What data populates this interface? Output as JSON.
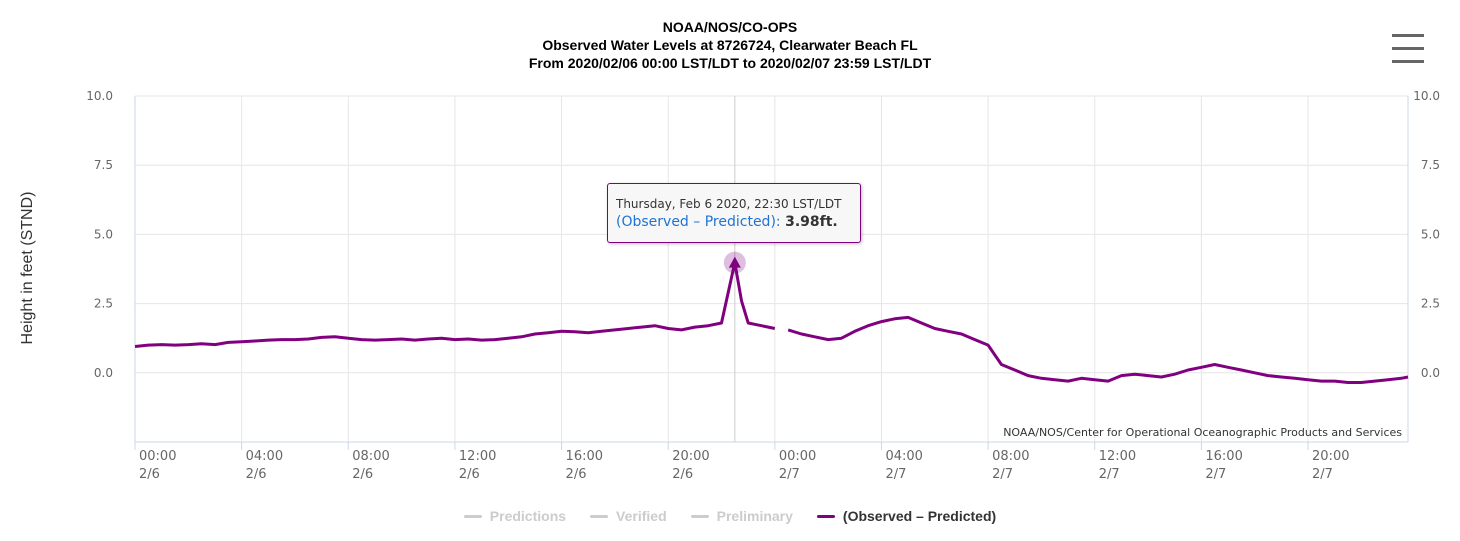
{
  "titles": [
    "NOAA/NOS/CO-OPS",
    "Observed Water Levels at 8726724, Clearwater Beach FL",
    "From 2020/02/06 00:00 LST/LDT to 2020/02/07 23:59 LST/LDT"
  ],
  "credit": "NOAA/NOS/Center for Operational Oceanographic Products and Services",
  "tooltip": {
    "date": "Thursday, Feb 6 2020, 22:30 LST/LDT",
    "series": "(Observed – Predicted):",
    "value": "3.98ft."
  },
  "legend": [
    {
      "label": "Predictions",
      "active": false
    },
    {
      "label": "Verified",
      "active": false
    },
    {
      "label": "Preliminary",
      "active": false
    },
    {
      "label": "(Observed – Predicted)",
      "active": true
    }
  ],
  "colors": {
    "series": "#800080",
    "grid": "#e6e6e6",
    "axis": "#ccd6eb",
    "tick_text": "#666666",
    "tooltip_series": "#1e73d4",
    "inactive": "#cccccc"
  },
  "icons": {
    "menu": "hamburger-menu-icon"
  },
  "chart_data": {
    "type": "line",
    "title": "NOAA/NOS/CO-OPS",
    "subtitle": "Observed Water Levels at 8726724, Clearwater Beach FL",
    "ylabel": "Height in feet (STND)",
    "xlabel": "",
    "ylim": [
      -2.5,
      10
    ],
    "xlim_hours": [
      0,
      47.75
    ],
    "y_ticks": [
      "10.0",
      "7.5",
      "5.0",
      "2.5",
      "0.0"
    ],
    "y_tick_values": [
      10,
      7.5,
      5,
      2.5,
      0
    ],
    "x_ticks": [
      {
        "hour": 0,
        "time": "00:00",
        "date": "2/6"
      },
      {
        "hour": 4,
        "time": "04:00",
        "date": "2/6"
      },
      {
        "hour": 8,
        "time": "08:00",
        "date": "2/6"
      },
      {
        "hour": 12,
        "time": "12:00",
        "date": "2/6"
      },
      {
        "hour": 16,
        "time": "16:00",
        "date": "2/6"
      },
      {
        "hour": 20,
        "time": "20:00",
        "date": "2/6"
      },
      {
        "hour": 24,
        "time": "00:00",
        "date": "2/7"
      },
      {
        "hour": 28,
        "time": "04:00",
        "date": "2/7"
      },
      {
        "hour": 32,
        "time": "08:00",
        "date": "2/7"
      },
      {
        "hour": 36,
        "time": "12:00",
        "date": "2/7"
      },
      {
        "hour": 40,
        "time": "16:00",
        "date": "2/7"
      },
      {
        "hour": 44,
        "time": "20:00",
        "date": "2/7"
      }
    ],
    "grid": true,
    "legend_position": "bottom-center",
    "highlight_point": {
      "hour": 22.5,
      "value": 3.98
    },
    "series": [
      {
        "name": "(Observed – Predicted)",
        "color": "#800080",
        "points": [
          [
            0,
            0.95
          ],
          [
            0.5,
            1.0
          ],
          [
            1,
            1.02
          ],
          [
            1.5,
            1.0
          ],
          [
            2,
            1.02
          ],
          [
            2.5,
            1.05
          ],
          [
            3,
            1.02
          ],
          [
            3.5,
            1.1
          ],
          [
            4,
            1.12
          ],
          [
            4.5,
            1.15
          ],
          [
            5,
            1.18
          ],
          [
            5.5,
            1.2
          ],
          [
            6,
            1.2
          ],
          [
            6.5,
            1.22
          ],
          [
            7,
            1.28
          ],
          [
            7.5,
            1.3
          ],
          [
            8,
            1.25
          ],
          [
            8.5,
            1.2
          ],
          [
            9,
            1.18
          ],
          [
            9.5,
            1.2
          ],
          [
            10,
            1.22
          ],
          [
            10.5,
            1.18
          ],
          [
            11,
            1.22
          ],
          [
            11.5,
            1.25
          ],
          [
            12,
            1.2
          ],
          [
            12.5,
            1.22
          ],
          [
            13,
            1.18
          ],
          [
            13.5,
            1.2
          ],
          [
            14,
            1.25
          ],
          [
            14.5,
            1.3
          ],
          [
            15,
            1.4
          ],
          [
            15.5,
            1.45
          ],
          [
            16,
            1.5
          ],
          [
            16.5,
            1.48
          ],
          [
            17,
            1.45
          ],
          [
            17.5,
            1.5
          ],
          [
            18,
            1.55
          ],
          [
            18.5,
            1.6
          ],
          [
            19,
            1.65
          ],
          [
            19.5,
            1.7
          ],
          [
            20,
            1.6
          ],
          [
            20.5,
            1.55
          ],
          [
            21,
            1.65
          ],
          [
            21.5,
            1.7
          ],
          [
            22,
            1.8
          ],
          [
            22.5,
            3.98
          ],
          [
            22.75,
            2.6
          ],
          [
            23,
            1.8
          ],
          [
            23.5,
            1.7
          ],
          [
            24,
            1.6
          ],
          [
            24.5,
            1.55
          ],
          [
            25,
            1.4
          ],
          [
            25.5,
            1.3
          ],
          [
            26,
            1.2
          ],
          [
            26.5,
            1.25
          ],
          [
            27,
            1.5
          ],
          [
            27.5,
            1.7
          ],
          [
            28,
            1.85
          ],
          [
            28.5,
            1.95
          ],
          [
            29,
            2.0
          ],
          [
            29.5,
            1.8
          ],
          [
            30,
            1.6
          ],
          [
            30.5,
            1.5
          ],
          [
            31,
            1.4
          ],
          [
            31.5,
            1.2
          ],
          [
            32,
            1.0
          ],
          [
            32.5,
            0.3
          ],
          [
            33,
            0.1
          ],
          [
            33.5,
            -0.1
          ],
          [
            34,
            -0.2
          ],
          [
            34.5,
            -0.25
          ],
          [
            35,
            -0.3
          ],
          [
            35.5,
            -0.2
          ],
          [
            36,
            -0.25
          ],
          [
            36.5,
            -0.3
          ],
          [
            37,
            -0.1
          ],
          [
            37.5,
            -0.05
          ],
          [
            38,
            -0.1
          ],
          [
            38.5,
            -0.15
          ],
          [
            39,
            -0.05
          ],
          [
            39.5,
            0.1
          ],
          [
            40,
            0.2
          ],
          [
            40.5,
            0.3
          ],
          [
            41,
            0.2
          ],
          [
            41.5,
            0.1
          ],
          [
            42,
            0.0
          ],
          [
            42.5,
            -0.1
          ],
          [
            43,
            -0.15
          ],
          [
            43.5,
            -0.2
          ],
          [
            44,
            -0.25
          ],
          [
            44.5,
            -0.3
          ],
          [
            45,
            -0.3
          ],
          [
            45.5,
            -0.35
          ],
          [
            46,
            -0.35
          ],
          [
            46.5,
            -0.3
          ],
          [
            47,
            -0.25
          ],
          [
            47.5,
            -0.2
          ],
          [
            47.75,
            -0.15
          ]
        ],
        "gaps_hours": [
          [
            24.1,
            24.35
          ],
          [
            26.45,
            26.6
          ],
          [
            28.9,
            29.05
          ]
        ]
      }
    ]
  }
}
